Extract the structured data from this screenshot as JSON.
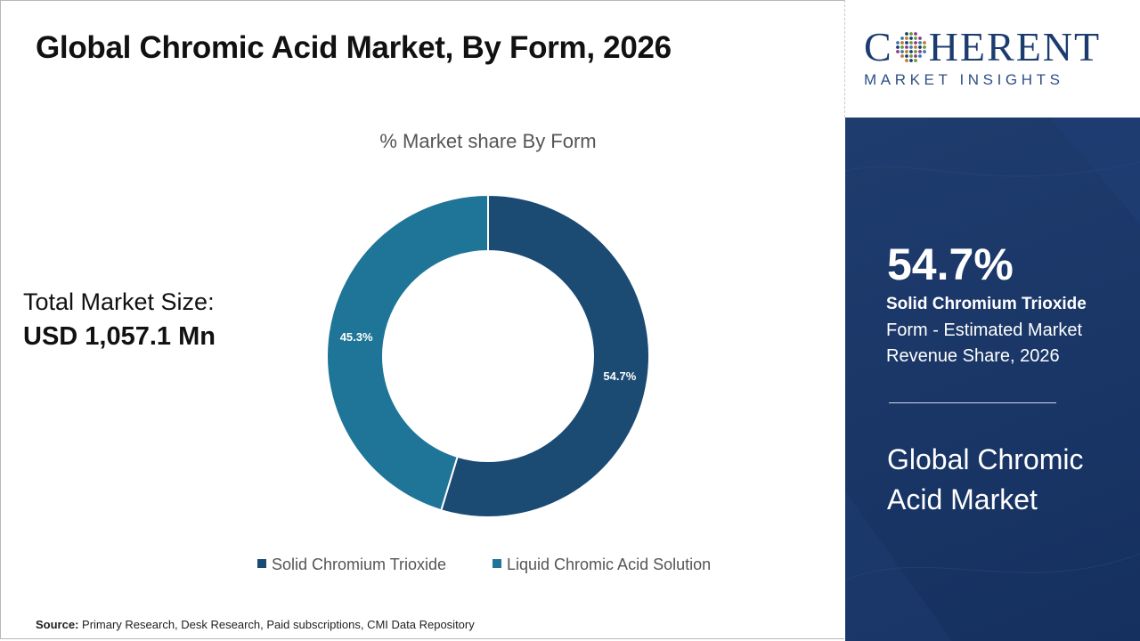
{
  "title": "Global Chromic Acid Market, By Form, 2026",
  "total": {
    "label": "Total Market Size:",
    "value": "USD 1,057.1 Mn"
  },
  "source": {
    "label": "Source:",
    "text": "Primary Research, Desk Research, Paid subscriptions, CMI Data Repository"
  },
  "logo": {
    "main_left": "C",
    "main_right": "HERENT",
    "sub": "MARKET INSIGHTS"
  },
  "panel": {
    "stat": "54.7%",
    "stat_name": "Solid Chromium Trioxide",
    "stat_desc": "Form - Estimated Market Revenue Share, 2026",
    "market_name": "Global Chromic Acid Market"
  },
  "colors": {
    "solid": "#1b4a72",
    "liquid": "#1f7597",
    "panel": "#1a3768"
  },
  "chart_data": {
    "type": "pie",
    "donut": true,
    "title": "% Market share By Form",
    "categories": [
      "Solid Chromium Trioxide",
      "Liquid Chromic Acid Solution"
    ],
    "values": [
      54.7,
      45.3
    ],
    "data_labels": [
      "54.7%",
      "45.3%"
    ],
    "colors": [
      "#1b4a72",
      "#1f7597"
    ],
    "legend_position": "bottom"
  }
}
